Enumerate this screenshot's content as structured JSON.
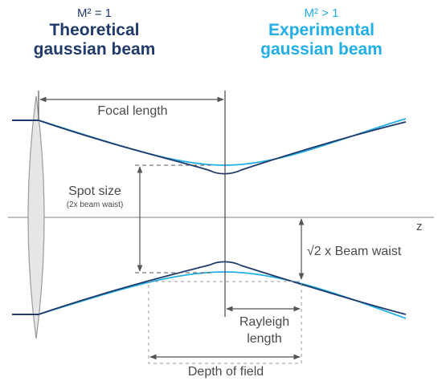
{
  "left_header": {
    "m2_label": "M² = 1",
    "title_line1": "Theoretical",
    "title_line2": "gaussian beam"
  },
  "right_header": {
    "m2_label": "M² > 1",
    "title_line1": "Experimental",
    "title_line2": "gaussian beam"
  },
  "labels": {
    "focal_length": "Focal length",
    "spot_size": "Spot size",
    "spot_size_note": "(2x beam waist)",
    "z_axis": "z",
    "beam_waist": "√2 x Beam waist",
    "rayleigh_line1": "Rayleigh",
    "rayleigh_line2": "length",
    "depth_of_field": "Depth of field"
  },
  "colors": {
    "theoretical_beam": "#1f3a6b",
    "experimental_beam": "#22aee6",
    "lens_fill": "#e6e6e6",
    "lens_stroke": "#9a9a9a",
    "annotation": "#555555"
  }
}
